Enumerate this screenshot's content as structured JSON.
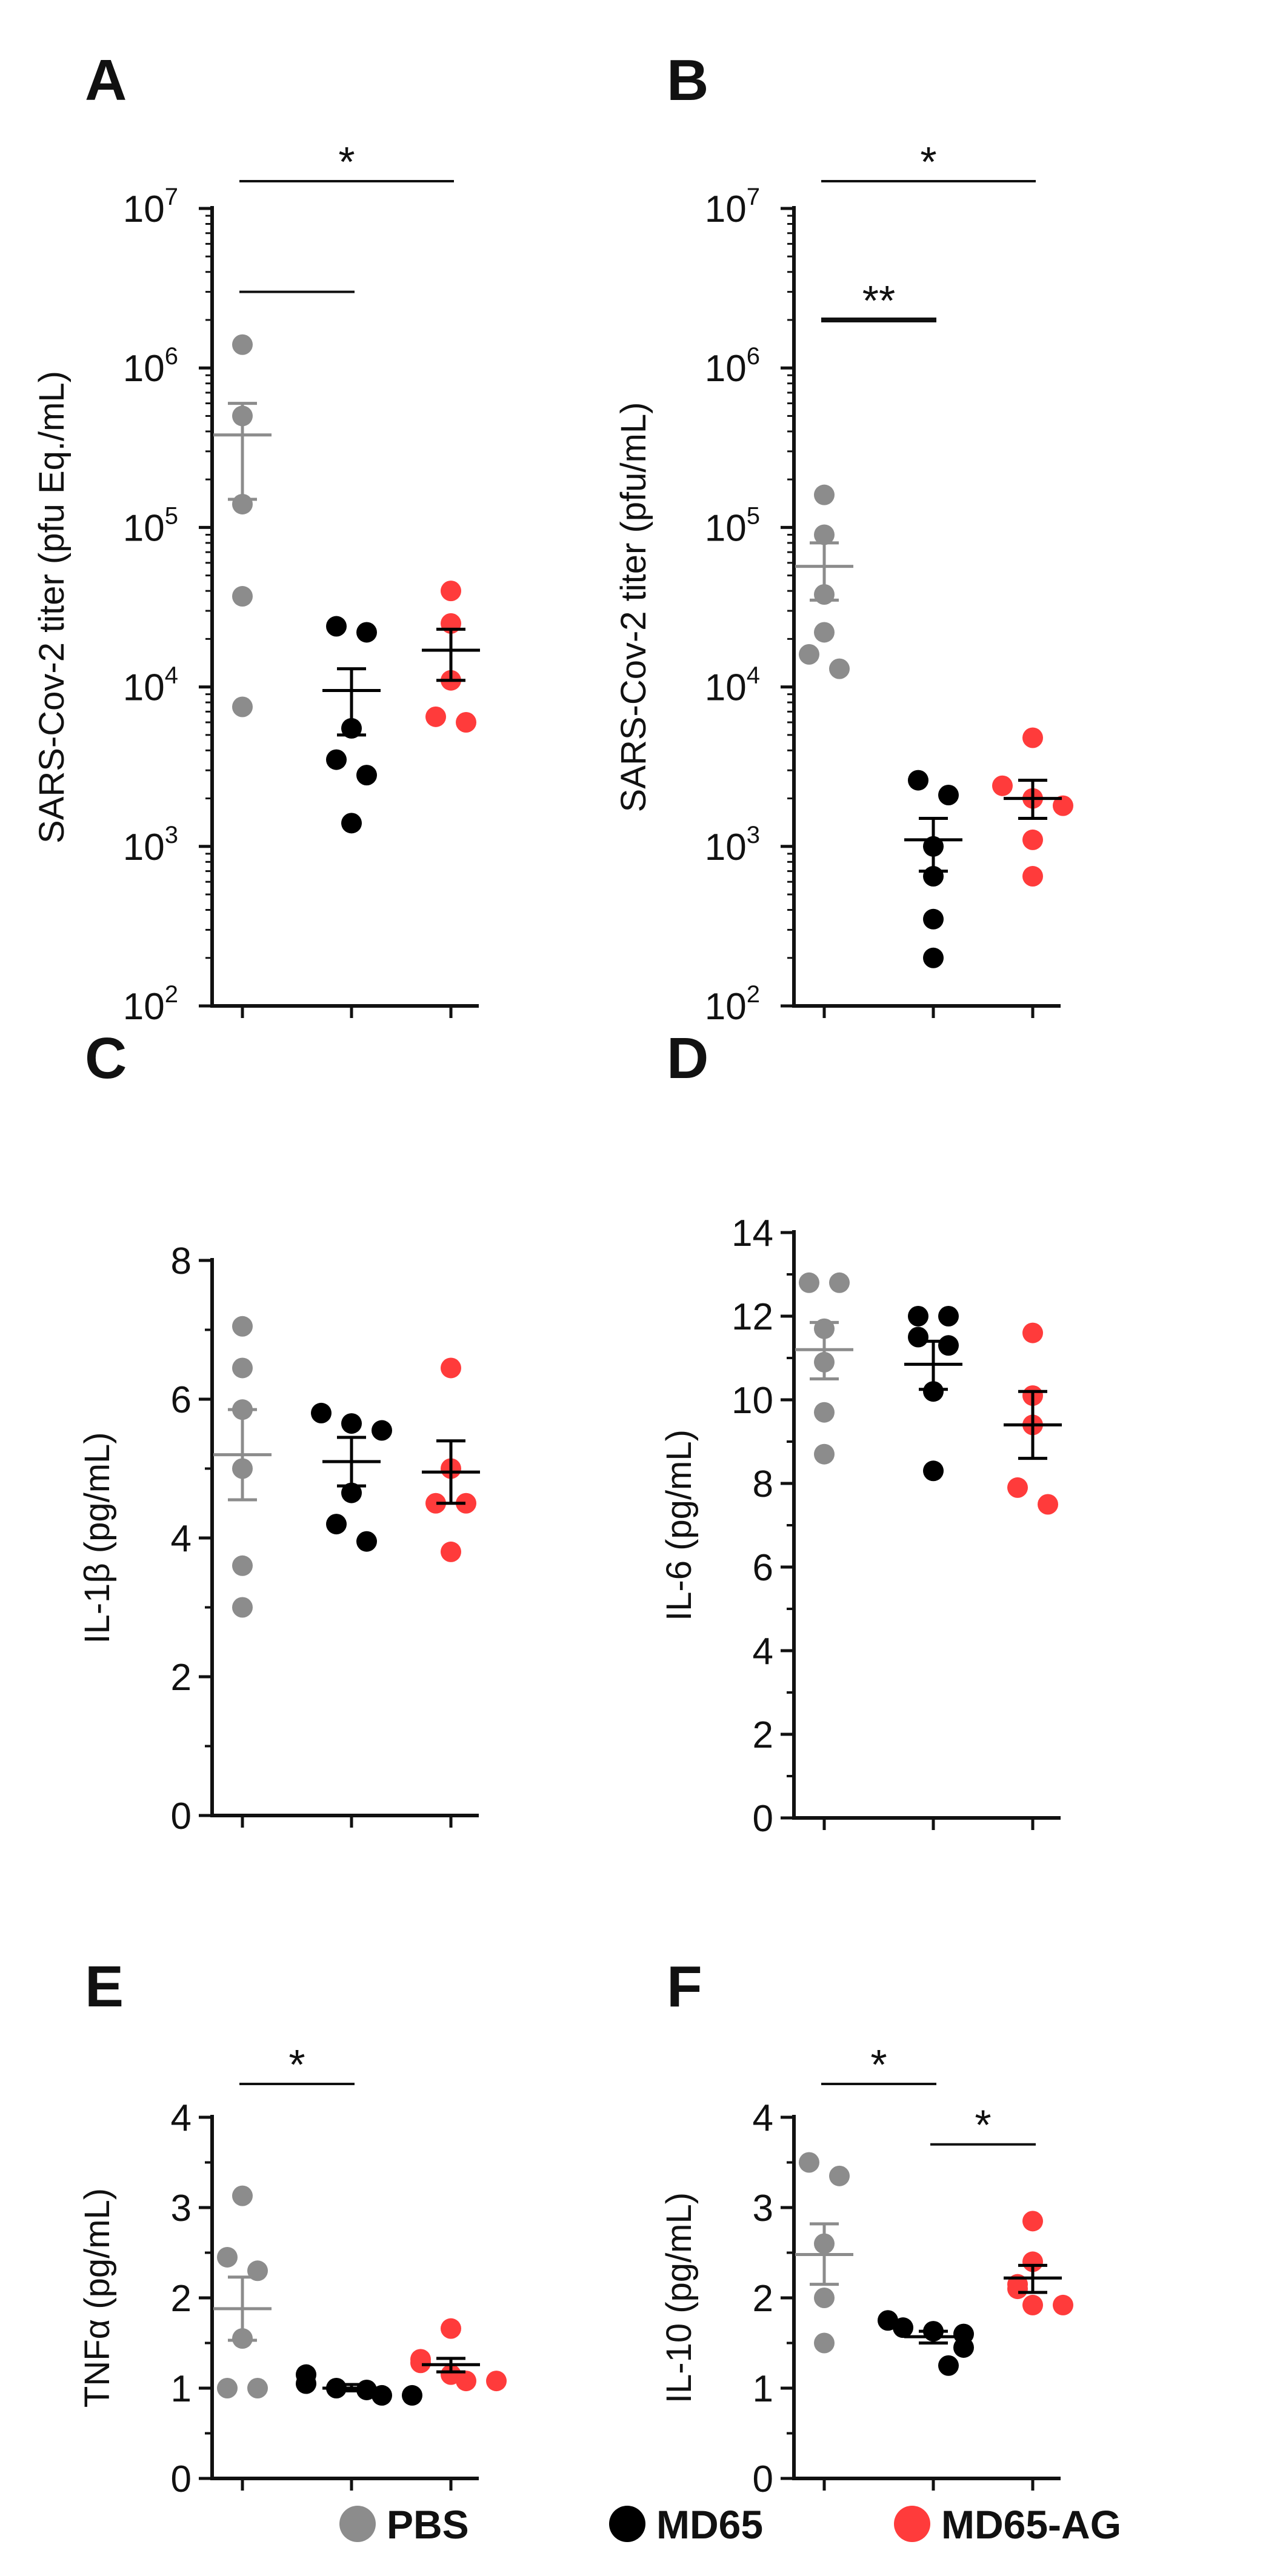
{
  "figure": {
    "legend": [
      {
        "label": "PBS",
        "color": "#8c8c8c"
      },
      {
        "label": "MD65",
        "color": "#000000"
      },
      {
        "label": "MD65-AG",
        "color": "#ff3b3b"
      }
    ],
    "group_colors": {
      "PBS": {
        "point": "#8c8c8c",
        "bar": "#8c8c8c"
      },
      "MD65": {
        "point": "#000000",
        "bar": "#000000"
      },
      "MD65-AG": {
        "point": "#ff3b3b",
        "bar": "#000000"
      }
    }
  },
  "chart_data": [
    {
      "panel": "A",
      "type": "scatter",
      "scale": "log",
      "ylabel": "SARS-Cov-2 titer (pfu Eq./mL)",
      "yticks": [
        {
          "base": "10",
          "exp": "2",
          "value": 100
        },
        {
          "base": "10",
          "exp": "3",
          "value": 1000
        },
        {
          "base": "10",
          "exp": "4",
          "value": 10000
        },
        {
          "base": "10",
          "exp": "5",
          "value": 100000
        },
        {
          "base": "10",
          "exp": "6",
          "value": 1000000
        },
        {
          "base": "10",
          "exp": "7",
          "value": 10000000
        }
      ],
      "ylim": [
        100,
        10000000
      ],
      "groups": [
        {
          "name": "PBS",
          "values": [
            1400000,
            500000,
            140000,
            37000,
            7500
          ],
          "mean": 380000,
          "sem_low": 150000,
          "sem_high": 600000
        },
        {
          "name": "MD65",
          "values": [
            24000,
            22000,
            5500,
            3500,
            2800,
            1400
          ],
          "mean": 9500,
          "sem_low": 5000,
          "sem_high": 13000
        },
        {
          "name": "MD65-AG",
          "values": [
            40000,
            25000,
            11000,
            6500,
            6000
          ],
          "mean": 17000,
          "sem_low": 11000,
          "sem_high": 23000
        }
      ],
      "significance": [
        {
          "from": "PBS",
          "to": "MD65-AG",
          "label": "*",
          "level": 10000000.0
        },
        {
          "from": "PBS",
          "to": "MD65",
          "label": "",
          "level": 3000000
        }
      ]
    },
    {
      "panel": "B",
      "type": "scatter",
      "scale": "log",
      "ylabel": "SARS-Cov-2 titer (pfu/mL)",
      "yticks": [
        {
          "base": "10",
          "exp": "2",
          "value": 100
        },
        {
          "base": "10",
          "exp": "3",
          "value": 1000
        },
        {
          "base": "10",
          "exp": "4",
          "value": 10000
        },
        {
          "base": "10",
          "exp": "5",
          "value": 100000
        },
        {
          "base": "10",
          "exp": "6",
          "value": 1000000
        },
        {
          "base": "10",
          "exp": "7",
          "value": 10000000
        }
      ],
      "ylim": [
        100,
        10000000
      ],
      "groups": [
        {
          "name": "PBS",
          "values": [
            160000,
            90000,
            38000,
            22000,
            16000,
            13000
          ],
          "mean": 57000,
          "sem_low": 35000,
          "sem_high": 80000
        },
        {
          "name": "MD65",
          "values": [
            2600,
            2100,
            1000,
            650,
            350,
            200
          ],
          "mean": 1100,
          "sem_low": 700,
          "sem_high": 1500
        },
        {
          "name": "MD65-AG",
          "values": [
            4800,
            2400,
            2000,
            1800,
            1100,
            650
          ],
          "mean": 2000,
          "sem_low": 1500,
          "sem_high": 2600
        }
      ],
      "significance": [
        {
          "from": "PBS",
          "to": "MD65-AG",
          "label": "*",
          "level": 10000000.0
        },
        {
          "from": "PBS",
          "to": "MD65",
          "label": "**",
          "level": 2000000
        }
      ]
    },
    {
      "panel": "C",
      "type": "scatter",
      "scale": "linear",
      "ylabel": "IL-1β (pg/mL)",
      "yticks": [
        {
          "label": "0",
          "value": 0
        },
        {
          "label": "2",
          "value": 2
        },
        {
          "label": "4",
          "value": 4
        },
        {
          "label": "6",
          "value": 6
        },
        {
          "label": "8",
          "value": 8
        }
      ],
      "minor_step": 1,
      "ylim": [
        0,
        8
      ],
      "groups": [
        {
          "name": "PBS",
          "values": [
            7.05,
            6.45,
            5.85,
            5.0,
            3.6,
            3.0
          ],
          "mean": 5.2,
          "sem_low": 4.55,
          "sem_high": 5.85
        },
        {
          "name": "MD65",
          "values": [
            5.8,
            5.65,
            5.55,
            4.65,
            4.2,
            3.95
          ],
          "mean": 5.1,
          "sem_low": 4.75,
          "sem_high": 5.45
        },
        {
          "name": "MD65-AG",
          "values": [
            6.45,
            5.0,
            4.5,
            4.5,
            3.8
          ],
          "mean": 4.95,
          "sem_low": 4.5,
          "sem_high": 5.4
        }
      ],
      "significance": []
    },
    {
      "panel": "D",
      "type": "scatter",
      "scale": "linear",
      "ylabel": "IL-6 (pg/mL)",
      "yticks": [
        {
          "label": "0",
          "value": 0
        },
        {
          "label": "2",
          "value": 2
        },
        {
          "label": "4",
          "value": 4
        },
        {
          "label": "6",
          "value": 6
        },
        {
          "label": "8",
          "value": 8
        },
        {
          "label": "10",
          "value": 10
        },
        {
          "label": "12",
          "value": 12
        },
        {
          "label": "14",
          "value": 14
        }
      ],
      "minor_step": 1,
      "ylim": [
        0,
        14
      ],
      "groups": [
        {
          "name": "PBS",
          "values": [
            12.8,
            12.8,
            11.7,
            10.9,
            9.7,
            8.7
          ],
          "mean": 11.2,
          "sem_low": 10.5,
          "sem_high": 11.85
        },
        {
          "name": "MD65",
          "values": [
            12.0,
            12.0,
            11.5,
            11.3,
            10.2,
            8.3
          ],
          "mean": 10.85,
          "sem_low": 10.25,
          "sem_high": 11.4
        },
        {
          "name": "MD65-AG",
          "values": [
            11.6,
            10.1,
            9.4,
            7.9,
            7.5
          ],
          "mean": 9.4,
          "sem_low": 8.6,
          "sem_high": 10.2
        }
      ],
      "significance": []
    },
    {
      "panel": "E",
      "type": "scatter",
      "scale": "linear",
      "ylabel": "TNFα (pg/mL)",
      "yticks": [
        {
          "label": "0",
          "value": 0
        },
        {
          "label": "1",
          "value": 1
        },
        {
          "label": "2",
          "value": 2
        },
        {
          "label": "3",
          "value": 3
        },
        {
          "label": "4",
          "value": 4
        }
      ],
      "minor_step": 0.5,
      "ylim": [
        0,
        4
      ],
      "groups": [
        {
          "name": "PBS",
          "values": [
            3.13,
            2.45,
            2.3,
            1.55,
            1.0,
            1.0
          ],
          "mean": 1.88,
          "sem_low": 1.53,
          "sem_high": 2.23
        },
        {
          "name": "MD65",
          "values": [
            1.15,
            1.05,
            1.0,
            0.98,
            0.92,
            0.92
          ],
          "mean": 1.0,
          "sem_low": 0.97,
          "sem_high": 1.04
        },
        {
          "name": "MD65-AG",
          "values": [
            1.66,
            1.32,
            1.28,
            1.15,
            1.08,
            1.08
          ],
          "mean": 1.26,
          "sem_low": 1.18,
          "sem_high": 1.33
        }
      ],
      "significance": [
        {
          "from": "PBS",
          "to": "MD65",
          "label": "*",
          "level": 4.0
        }
      ]
    },
    {
      "panel": "F",
      "type": "scatter",
      "scale": "linear",
      "ylabel": "IL-10 (pg/mL)",
      "yticks": [
        {
          "label": "0",
          "value": 0
        },
        {
          "label": "1",
          "value": 1
        },
        {
          "label": "2",
          "value": 2
        },
        {
          "label": "3",
          "value": 3
        },
        {
          "label": "4",
          "value": 4
        }
      ],
      "minor_step": 0.5,
      "ylim": [
        0,
        4
      ],
      "groups": [
        {
          "name": "PBS",
          "values": [
            3.5,
            3.35,
            2.6,
            2.0,
            1.5
          ],
          "mean": 2.48,
          "sem_low": 2.15,
          "sem_high": 2.82
        },
        {
          "name": "MD65",
          "values": [
            1.75,
            1.67,
            1.63,
            1.6,
            1.45,
            1.25
          ],
          "mean": 1.57,
          "sem_low": 1.5,
          "sem_high": 1.63
        },
        {
          "name": "MD65-AG",
          "values": [
            2.85,
            2.4,
            2.15,
            2.1,
            1.92,
            1.92
          ],
          "mean": 2.22,
          "sem_low": 2.06,
          "sem_high": 2.36
        }
      ],
      "significance": [
        {
          "from": "PBS",
          "to": "MD65",
          "label": "*",
          "level": 4.0
        },
        {
          "from": "MD65",
          "to": "MD65-AG",
          "label": "*",
          "level": 3.7
        }
      ]
    }
  ]
}
